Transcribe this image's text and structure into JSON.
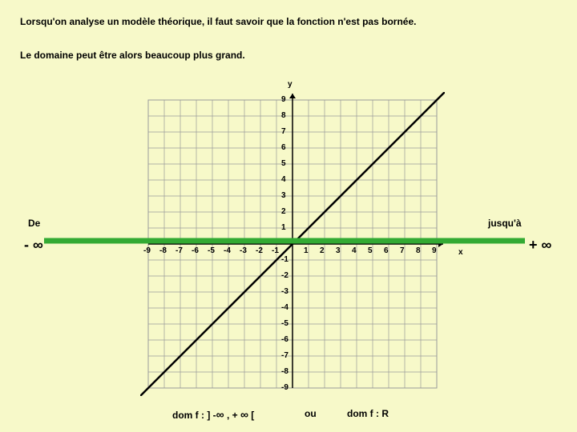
{
  "text": {
    "line1": "Lorsqu'on analyse un modèle théorique, il faut savoir que la fonction n'est pas bornée.",
    "line2": "Le domaine peut être alors beaucoup plus grand.",
    "de": "De",
    "jusqua": "jusqu'à",
    "minus_inf": "- ∞",
    "plus_inf": "+ ∞",
    "dom1_pre": "dom f : ] -",
    "dom1_mid": " , + ",
    "dom1_post": " [",
    "ou": "ou",
    "dom2": "dom f : R",
    "x_axis": "x",
    "y_axis": "y"
  },
  "chart": {
    "grid_min": -9,
    "grid_max": 9,
    "cell_size": 20,
    "grid_color": "#9a9a9a",
    "axis_color": "#000000",
    "line_color": "#000000",
    "line_width": 2.5,
    "green_line_color": "#33aa33",
    "green_line_width": 7,
    "green_line_y": 0.2,
    "slope": 1,
    "intercept": 0,
    "background": "#f7f9c9",
    "x_ticks": [
      -9,
      -8,
      -7,
      -6,
      -5,
      -4,
      -3,
      -2,
      -1,
      1,
      2,
      3,
      4,
      5,
      6,
      7,
      8,
      9
    ],
    "y_ticks": [
      9,
      8,
      7,
      6,
      5,
      4,
      3,
      2,
      1,
      -1,
      -2,
      -3,
      -4,
      -5,
      -6,
      -7,
      -8,
      -9
    ],
    "label_fontsize": 10
  },
  "colors": {
    "bg": "#f7f9c9",
    "text": "#000000"
  }
}
